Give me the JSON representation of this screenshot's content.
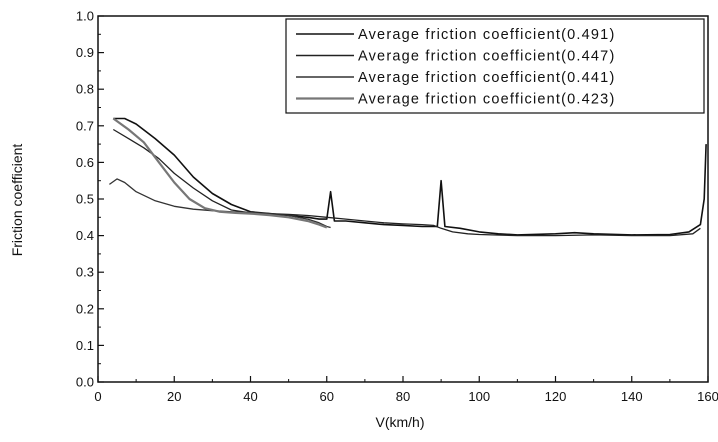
{
  "chart_data": {
    "type": "line",
    "title": "",
    "xlabel": "V(km/h)",
    "ylabel": "Friction coefficient",
    "xlim": [
      0,
      160
    ],
    "ylim": [
      0.0,
      1.0
    ],
    "x_ticks": [
      "0",
      "20",
      "40",
      "60",
      "80",
      "100",
      "120",
      "140",
      "160"
    ],
    "y_ticks": [
      "0.0",
      "0.1",
      "0.2",
      "0.3",
      "0.4",
      "0.5",
      "0.6",
      "0.7",
      "0.8",
      "0.9",
      "1.0"
    ],
    "grid": false,
    "legend_position": "top-right",
    "series": [
      {
        "name": "Average friction coefficient(0.491)",
        "color": "#111111",
        "points": [
          [
            4,
            0.72
          ],
          [
            7,
            0.72
          ],
          [
            10,
            0.705
          ],
          [
            15,
            0.665
          ],
          [
            20,
            0.62
          ],
          [
            25,
            0.56
          ],
          [
            30,
            0.515
          ],
          [
            35,
            0.485
          ],
          [
            40,
            0.465
          ],
          [
            45,
            0.46
          ],
          [
            50,
            0.455
          ],
          [
            55,
            0.45
          ],
          [
            58,
            0.445
          ],
          [
            60,
            0.445
          ],
          [
            61,
            0.52
          ],
          [
            62,
            0.44
          ],
          [
            65,
            0.44
          ],
          [
            70,
            0.435
          ],
          [
            75,
            0.43
          ],
          [
            80,
            0.428
          ],
          [
            85,
            0.425
          ],
          [
            89,
            0.425
          ],
          [
            90,
            0.55
          ],
          [
            91,
            0.425
          ],
          [
            95,
            0.42
          ],
          [
            100,
            0.41
          ],
          [
            105,
            0.405
          ],
          [
            110,
            0.402
          ],
          [
            120,
            0.405
          ],
          [
            125,
            0.408
          ],
          [
            130,
            0.405
          ],
          [
            140,
            0.402
          ],
          [
            150,
            0.403
          ],
          [
            155,
            0.41
          ],
          [
            158,
            0.43
          ],
          [
            159,
            0.5
          ],
          [
            159.5,
            0.65
          ]
        ]
      },
      {
        "name": "Average friction coefficient(0.447)",
        "color": "#222222",
        "points": [
          [
            4,
            0.69
          ],
          [
            8,
            0.665
          ],
          [
            12,
            0.64
          ],
          [
            16,
            0.61
          ],
          [
            20,
            0.57
          ],
          [
            25,
            0.53
          ],
          [
            30,
            0.495
          ],
          [
            35,
            0.47
          ],
          [
            40,
            0.462
          ],
          [
            45,
            0.46
          ],
          [
            50,
            0.458
          ],
          [
            55,
            0.455
          ],
          [
            60,
            0.45
          ],
          [
            65,
            0.445
          ],
          [
            70,
            0.44
          ],
          [
            75,
            0.435
          ],
          [
            80,
            0.432
          ],
          [
            85,
            0.43
          ],
          [
            88,
            0.428
          ],
          [
            90,
            0.42
          ],
          [
            93,
            0.41
          ],
          [
            97,
            0.405
          ],
          [
            100,
            0.403
          ],
          [
            110,
            0.4
          ],
          [
            120,
            0.4
          ],
          [
            130,
            0.402
          ],
          [
            140,
            0.4
          ],
          [
            150,
            0.4
          ],
          [
            156,
            0.405
          ],
          [
            158,
            0.42
          ]
        ]
      },
      {
        "name": "Average friction coefficient(0.441)",
        "color": "#333333",
        "points": [
          [
            3,
            0.54
          ],
          [
            5,
            0.555
          ],
          [
            7,
            0.545
          ],
          [
            10,
            0.52
          ],
          [
            15,
            0.495
          ],
          [
            20,
            0.48
          ],
          [
            25,
            0.472
          ],
          [
            30,
            0.468
          ],
          [
            35,
            0.465
          ],
          [
            40,
            0.463
          ],
          [
            45,
            0.46
          ],
          [
            50,
            0.455
          ],
          [
            55,
            0.445
          ],
          [
            58,
            0.435
          ],
          [
            60,
            0.425
          ],
          [
            61,
            0.422
          ]
        ]
      },
      {
        "name": "Average friction coefficient(0.423)",
        "color": "#777777",
        "points": [
          [
            4,
            0.72
          ],
          [
            8,
            0.69
          ],
          [
            12,
            0.655
          ],
          [
            16,
            0.6
          ],
          [
            20,
            0.545
          ],
          [
            24,
            0.5
          ],
          [
            28,
            0.475
          ],
          [
            32,
            0.465
          ],
          [
            36,
            0.462
          ],
          [
            40,
            0.46
          ],
          [
            45,
            0.456
          ],
          [
            50,
            0.45
          ],
          [
            55,
            0.44
          ],
          [
            58,
            0.43
          ],
          [
            60,
            0.422
          ]
        ]
      }
    ]
  }
}
